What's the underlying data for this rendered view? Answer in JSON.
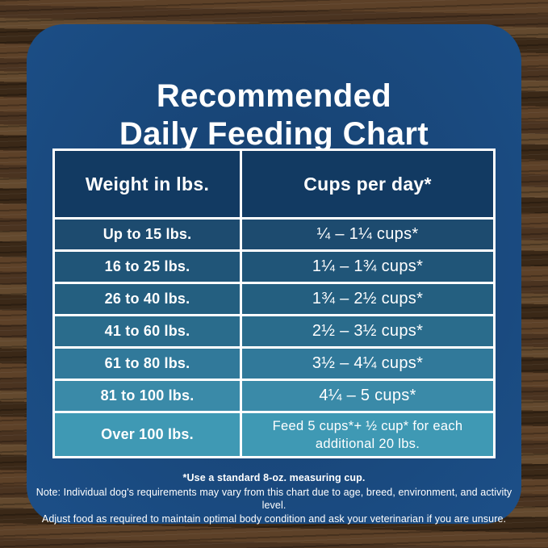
{
  "title": {
    "line1": "Recommended",
    "line2": "Daily Feeding Chart"
  },
  "chart_data": {
    "type": "table",
    "title": "Recommended Daily Feeding Chart",
    "columns": [
      "Weight in lbs.",
      "Cups per day*"
    ],
    "rows": [
      {
        "weight": "Up to 15 lbs.",
        "cups": "¼ – 1¼ cups*"
      },
      {
        "weight": "16 to 25 lbs.",
        "cups": "1¼ – 1¾  cups*"
      },
      {
        "weight": "26 to 40 lbs.",
        "cups": "1¾ – 2½ cups*"
      },
      {
        "weight": "41 to 60 lbs.",
        "cups": "2½ – 3½ cups*"
      },
      {
        "weight": "61 to 80 lbs.",
        "cups": "3½ – 4¼ cups*"
      },
      {
        "weight": "81 to 100 lbs.",
        "cups": "4¼ – 5 cups*"
      },
      {
        "weight": "Over 100 lbs.",
        "cups": "Feed 5 cups*+ ½ cup* for each additional 20 lbs."
      }
    ],
    "footnotes": [
      "*Use a standard 8-oz. measuring cup.",
      "Note: Individual dog's requirements may vary from this chart due to age, breed, environment, and activity level.",
      "Adjust food as required to maintain optimal body condition and ask your veterinarian if you are unsure."
    ]
  },
  "colors": {
    "panel_center": "#16406e",
    "panel_edge": "#1c4f88",
    "header_bg": "#123a62",
    "row_bgs": [
      "#1d4b6f",
      "#205578",
      "#245f80",
      "#2a6c8c",
      "#31799a",
      "#3a8aa8",
      "#3f99b4"
    ],
    "table_border": "#ffffff",
    "text": "#ffffff",
    "wood_base": "#4a3220"
  }
}
